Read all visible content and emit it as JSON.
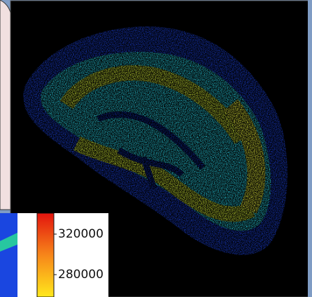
{
  "colorbar": {
    "tick_labels": [
      "320000",
      "280000"
    ]
  }
}
